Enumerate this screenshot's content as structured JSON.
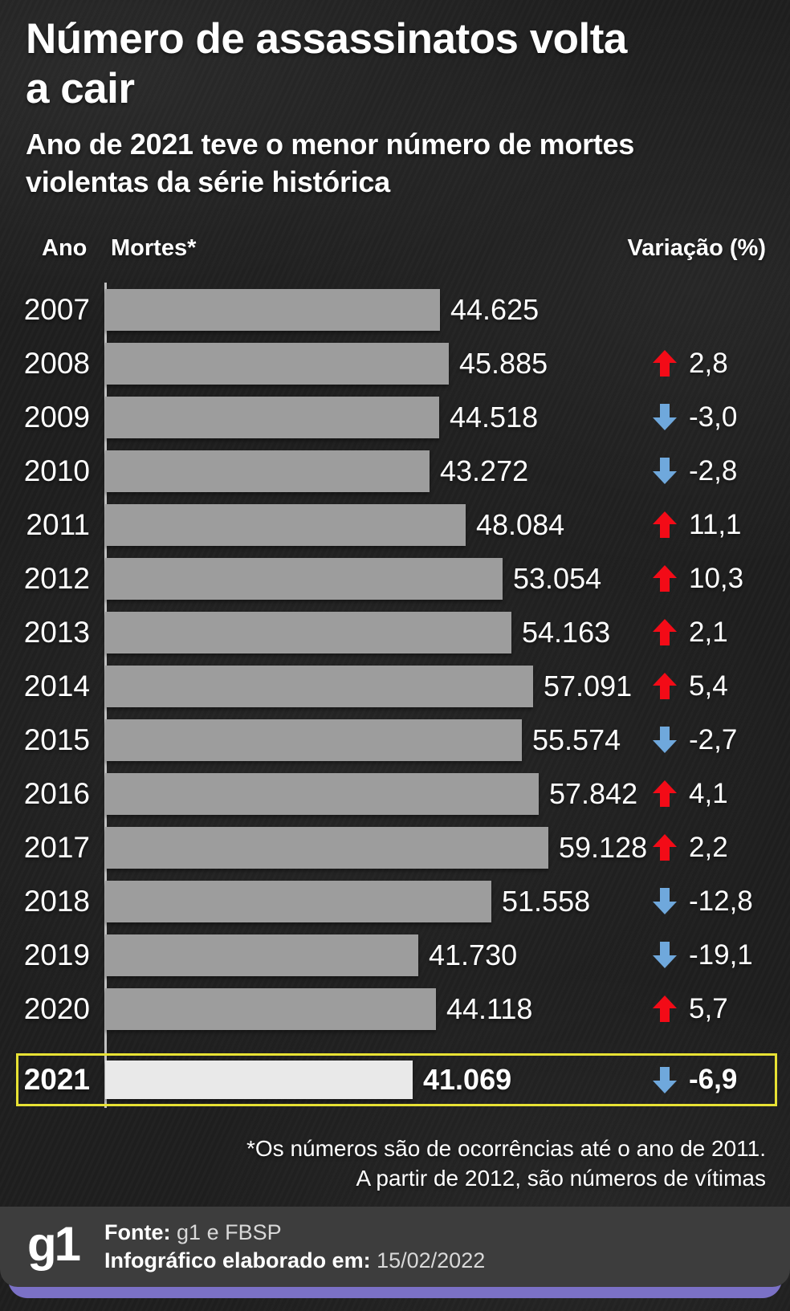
{
  "header": {
    "title_lines": [
      "Número de assassinatos volta",
      "a cair"
    ],
    "subtitle_lines": [
      "Ano de 2021 teve o menor número de mortes",
      "violentas da série histórica"
    ]
  },
  "columns": {
    "year": "Ano",
    "deaths": "Mortes*",
    "variation": "Variação (%)"
  },
  "chart_data": {
    "type": "bar",
    "orientation": "horizontal",
    "title": "Número de assassinatos volta a cair",
    "xlabel": "Mortes*",
    "ylabel": "Ano",
    "xlim": [
      0,
      59128
    ],
    "grid": false,
    "categories": [
      "2007",
      "2008",
      "2009",
      "2010",
      "2011",
      "2012",
      "2013",
      "2014",
      "2015",
      "2016",
      "2017",
      "2018",
      "2019",
      "2020",
      "2021"
    ],
    "values": [
      44625,
      45885,
      44518,
      43272,
      48084,
      53054,
      54163,
      57091,
      55574,
      57842,
      59128,
      51558,
      41730,
      44118,
      41069
    ],
    "value_labels": [
      "44.625",
      "45.885",
      "44.518",
      "43.272",
      "48.084",
      "53.054",
      "54.163",
      "57.091",
      "55.574",
      "57.842",
      "59.128",
      "51.558",
      "41.730",
      "44.118",
      "41.069"
    ],
    "variations_pct": [
      null,
      2.8,
      -3.0,
      -2.8,
      11.1,
      10.3,
      2.1,
      5.4,
      -2.7,
      4.1,
      2.2,
      -12.8,
      -19.1,
      5.7,
      -6.9
    ],
    "variation_labels": [
      "",
      "2,8",
      "-3,0",
      "-2,8",
      "11,1",
      "10,3",
      "2,1",
      "5,4",
      "-2,7",
      "4,1",
      "2,2",
      "-12,8",
      "-19,1",
      "5,7",
      "-6,9"
    ],
    "highlight_category": "2021",
    "legend": null
  },
  "footnote": {
    "lines": [
      "*Os números são de ocorrências até o ano de 2011.",
      "A partir de 2012, são números de vítimas"
    ]
  },
  "footer": {
    "logo": "g1",
    "source_label": "Fonte:",
    "source_value": "g1 e FBSP",
    "date_label": "Infográfico elaborado em:",
    "date_value": "15/02/2022"
  },
  "colors": {
    "background": "#1f1f1f",
    "bar": "#9d9d9d",
    "highlight_bar": "#e9e9e9",
    "highlight_border": "#e8e234",
    "increase_arrow_red": "#f30b17",
    "decrease_arrow_blue": "#6fa8dc",
    "axis_line": "#cfcfcf",
    "footer_bg": "#3d3d3d",
    "accent_purple": "#7b71c6",
    "text": "#ffffff"
  }
}
